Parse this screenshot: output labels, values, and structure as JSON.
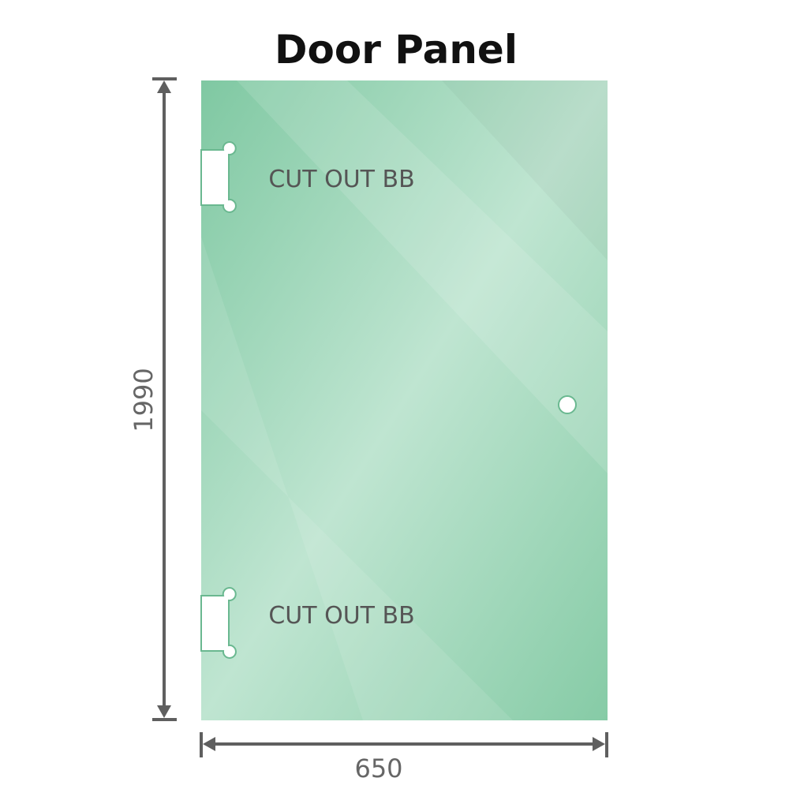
{
  "title": "Door Panel",
  "cutouts": [
    {
      "label": "CUT OUT BB"
    },
    {
      "label": "CUT OUT BB"
    }
  ],
  "dimensions": {
    "height": "1990",
    "width": "650"
  },
  "colors": {
    "glass": "#86cba6",
    "glass_light": "#bde5cf",
    "dimension_line": "#5f5f5f"
  }
}
